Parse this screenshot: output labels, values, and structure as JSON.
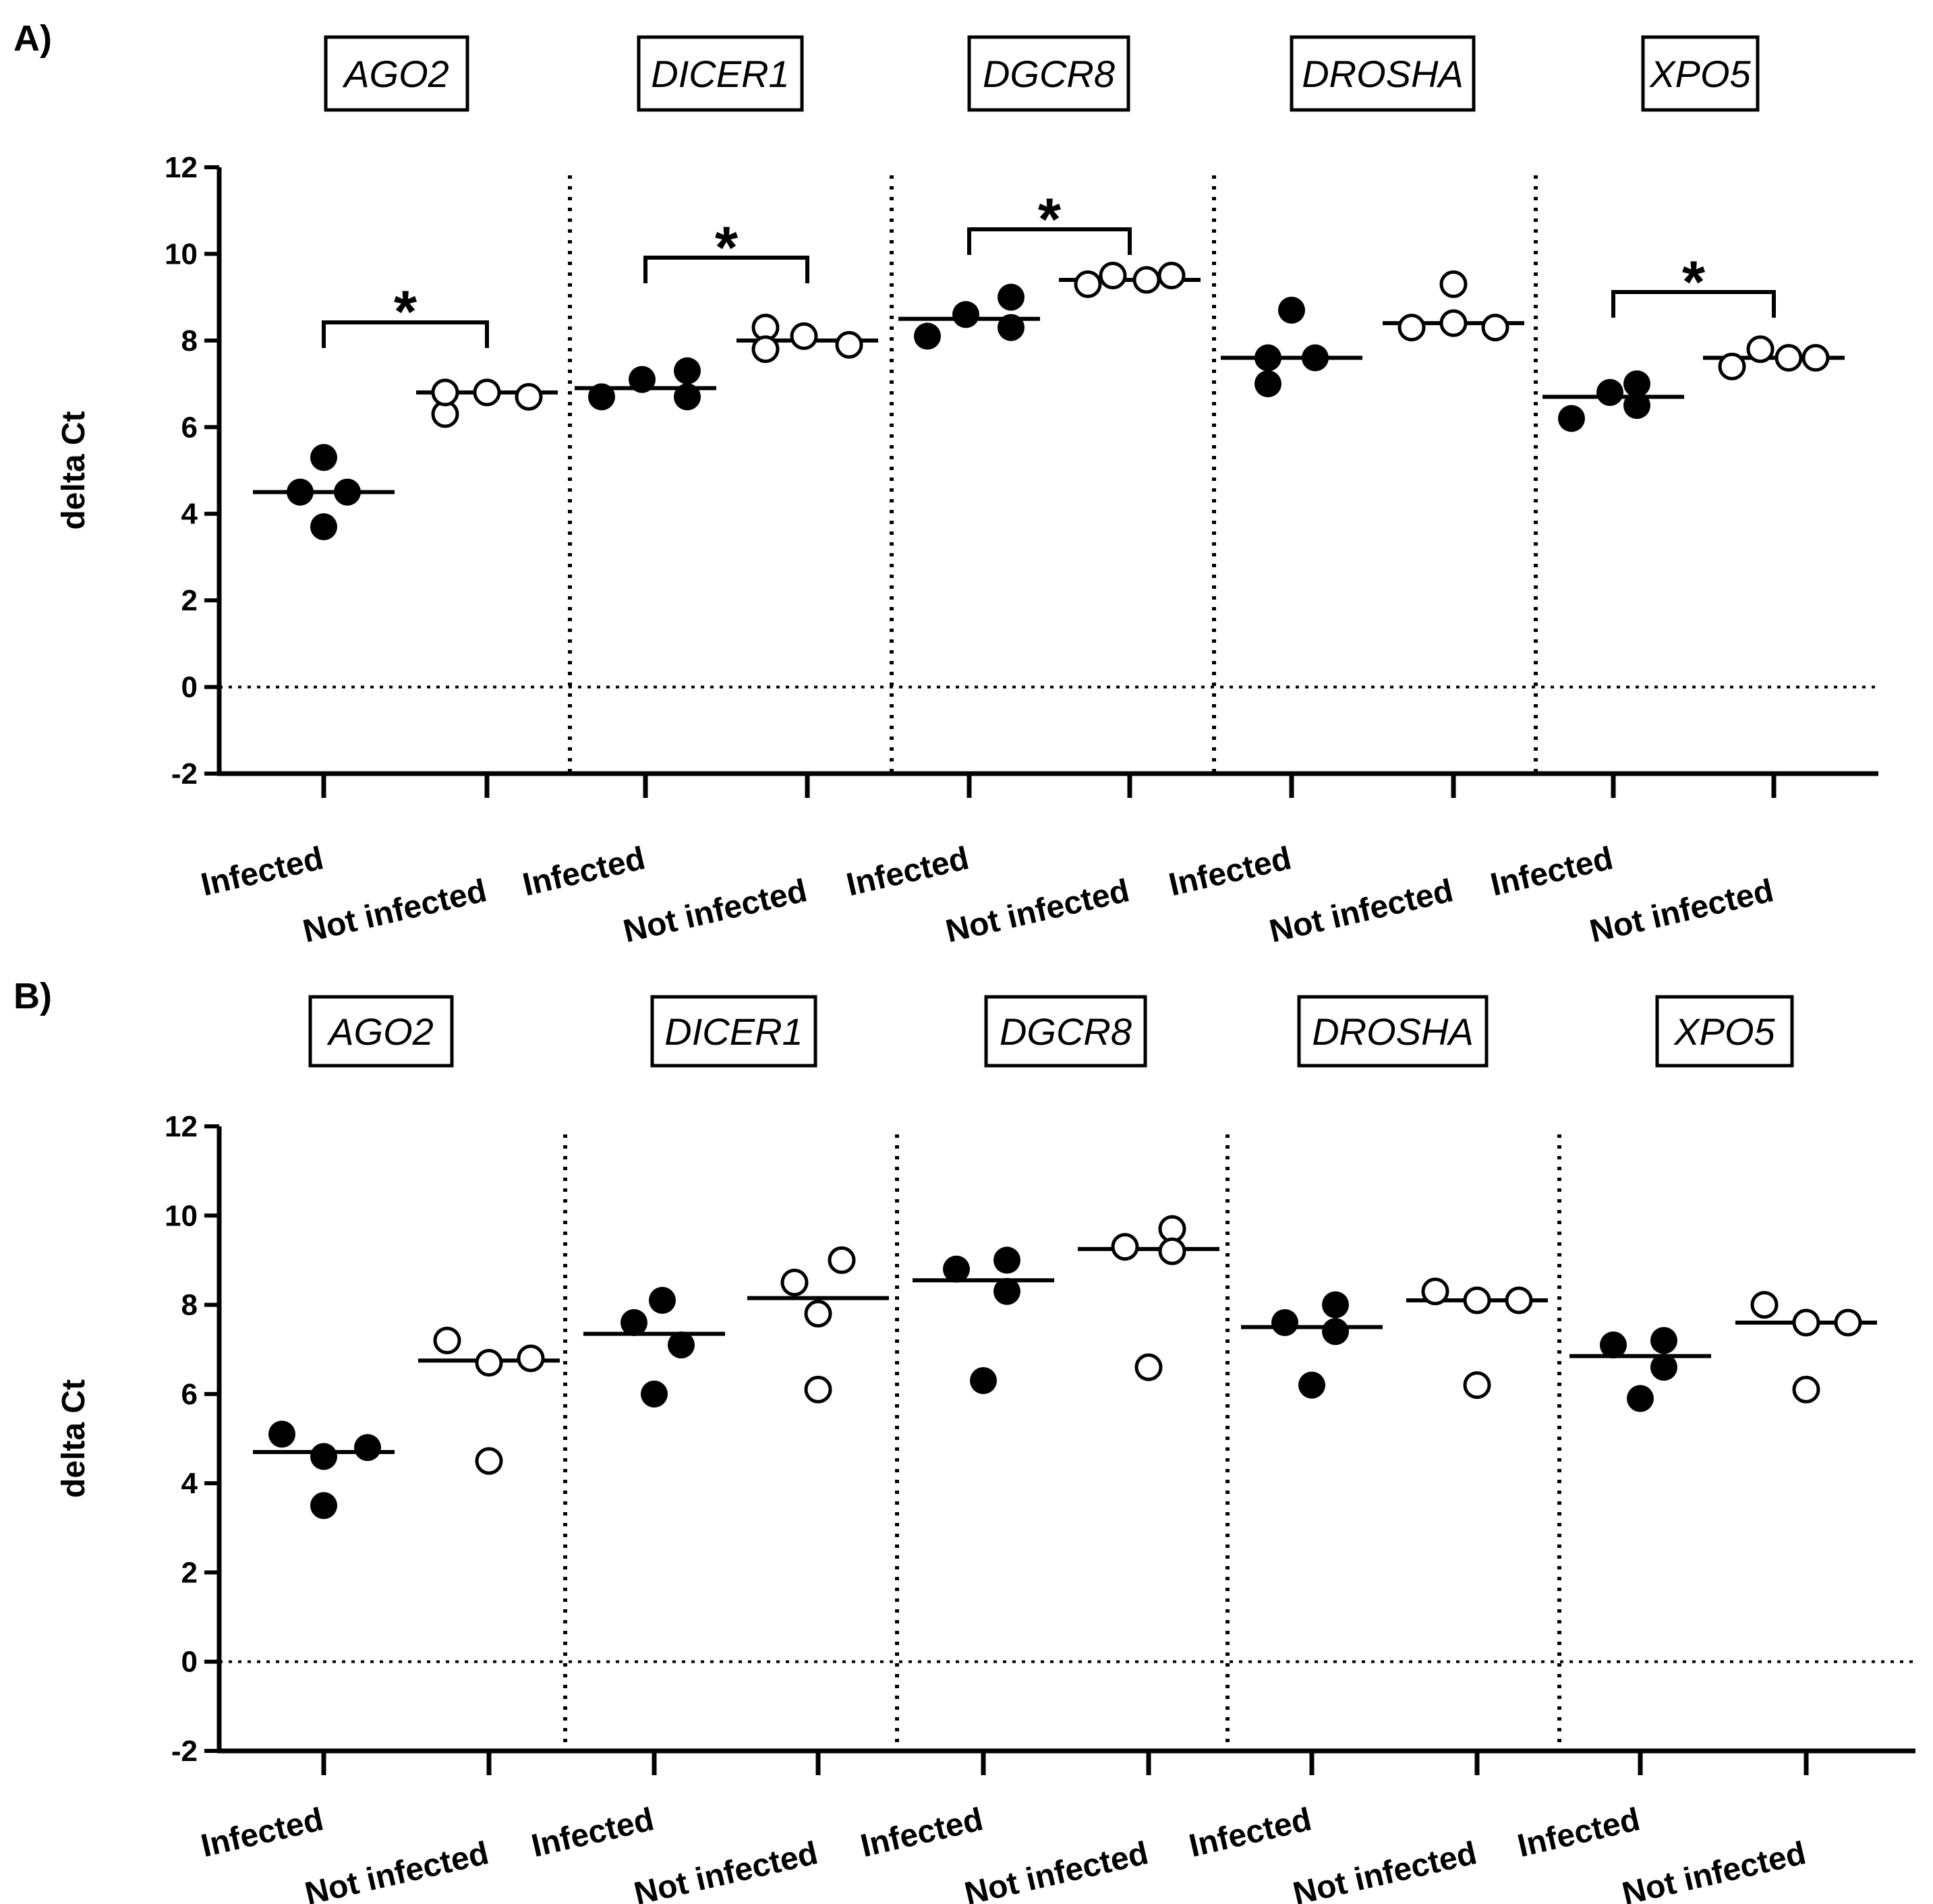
{
  "chart_data": [
    {
      "type": "scatter",
      "panel_label": "A)",
      "ylabel": "delta Ct",
      "ylim": [
        -2,
        12
      ],
      "yticks": [
        -2,
        0,
        2,
        4,
        6,
        8,
        10,
        12
      ],
      "ytick_labels": [
        "-2",
        "0",
        "2",
        "4",
        "6",
        "8",
        "10",
        "12"
      ],
      "reference_line_y": 0,
      "group_labels": [
        "Infected",
        "Not infected"
      ],
      "genes": [
        {
          "name": "AGO2",
          "infected": [
            5.3,
            4.5,
            4.5,
            3.7
          ],
          "not_infected": [
            6.3,
            6.8,
            6.8,
            6.7
          ],
          "median_infected": 4.5,
          "median_not_infected": 6.8,
          "significance": "*"
        },
        {
          "name": "DICER1",
          "infected": [
            6.7,
            7.1,
            7.3,
            6.7
          ],
          "not_infected": [
            8.3,
            7.8,
            8.1,
            7.9
          ],
          "median_infected": 6.9,
          "median_not_infected": 8.0,
          "significance": "*"
        },
        {
          "name": "DGCR8",
          "infected": [
            8.1,
            8.6,
            9.0,
            8.3
          ],
          "not_infected": [
            9.3,
            9.5,
            9.4,
            9.5
          ],
          "median_infected": 8.5,
          "median_not_infected": 9.4,
          "significance": "*"
        },
        {
          "name": "DROSHA",
          "infected": [
            7.0,
            7.6,
            8.7,
            7.6
          ],
          "not_infected": [
            8.3,
            8.4,
            9.3,
            8.3
          ],
          "median_infected": 7.6,
          "median_not_infected": 8.4,
          "significance": ""
        },
        {
          "name": "XPO5",
          "infected": [
            6.2,
            6.8,
            7.0,
            6.5
          ],
          "not_infected": [
            7.4,
            7.8,
            7.6,
            7.6
          ],
          "median_infected": 6.7,
          "median_not_infected": 7.6,
          "significance": "*"
        }
      ]
    },
    {
      "type": "scatter",
      "panel_label": "B)",
      "ylabel": "delta Ct",
      "ylim": [
        -2,
        12
      ],
      "yticks": [
        -2,
        0,
        2,
        4,
        6,
        8,
        10,
        12
      ],
      "ytick_labels": [
        "-2",
        "0",
        "2",
        "4",
        "6",
        "8",
        "10",
        "12"
      ],
      "reference_line_y": 0,
      "group_labels": [
        "Infected",
        "Not infected"
      ],
      "genes": [
        {
          "name": "AGO2",
          "infected": [
            5.1,
            4.6,
            4.8,
            3.5
          ],
          "not_infected": [
            7.2,
            6.7,
            6.8,
            4.5
          ],
          "median_infected": 4.7,
          "median_not_infected": 6.75,
          "significance": ""
        },
        {
          "name": "DICER1",
          "infected": [
            8.1,
            7.6,
            7.1,
            6.0
          ],
          "not_infected": [
            8.5,
            9.0,
            7.8,
            6.1
          ],
          "median_infected": 7.35,
          "median_not_infected": 8.15,
          "significance": ""
        },
        {
          "name": "DGCR8",
          "infected": [
            8.8,
            9.0,
            8.3,
            6.3
          ],
          "not_infected": [
            9.3,
            9.7,
            9.2,
            6.6
          ],
          "median_infected": 8.55,
          "median_not_infected": 9.25,
          "significance": ""
        },
        {
          "name": "DROSHA",
          "infected": [
            7.6,
            7.4,
            8.0,
            6.2
          ],
          "not_infected": [
            8.3,
            8.1,
            8.1,
            6.2
          ],
          "median_infected": 7.5,
          "median_not_infected": 8.1,
          "significance": ""
        },
        {
          "name": "XPO5",
          "infected": [
            7.1,
            6.6,
            7.2,
            5.9
          ],
          "not_infected": [
            8.0,
            7.6,
            7.6,
            6.1
          ],
          "median_infected": 6.85,
          "median_not_infected": 7.6,
          "significance": ""
        }
      ]
    }
  ]
}
